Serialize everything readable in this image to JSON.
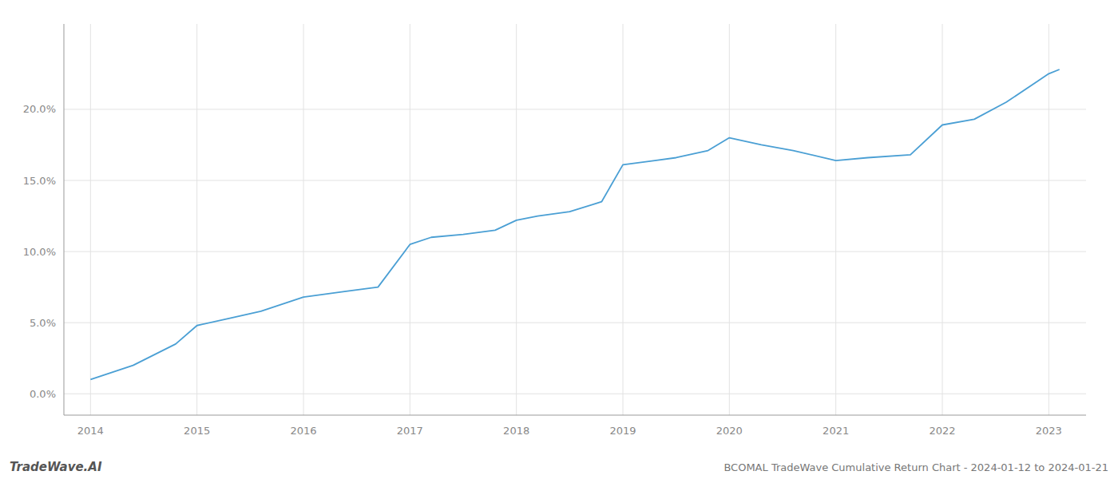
{
  "chart_data": {
    "type": "line",
    "title": "BCOMAL TradeWave Cumulative Return Chart - 2024-01-12 to 2024-01-21",
    "annotations": [
      "TradeWave.AI"
    ],
    "color": "#4a9fd4",
    "x": [
      2014.0,
      2014.4,
      2014.8,
      2015.0,
      2015.3,
      2015.6,
      2016.0,
      2016.4,
      2016.7,
      2017.0,
      2017.2,
      2017.5,
      2017.8,
      2018.0,
      2018.2,
      2018.5,
      2018.8,
      2019.0,
      2019.3,
      2019.5,
      2019.8,
      2020.0,
      2020.3,
      2020.6,
      2021.0,
      2021.3,
      2021.7,
      2022.0,
      2022.3,
      2022.6,
      2022.9,
      2023.0,
      2023.1
    ],
    "values": [
      1.0,
      2.0,
      3.5,
      4.8,
      5.3,
      5.8,
      6.8,
      7.2,
      7.5,
      10.5,
      11.0,
      11.2,
      11.5,
      12.2,
      12.5,
      12.8,
      13.5,
      16.1,
      16.4,
      16.6,
      17.1,
      18.0,
      17.5,
      17.1,
      16.4,
      16.6,
      16.8,
      18.9,
      19.3,
      20.5,
      22.0,
      22.5,
      22.8
    ],
    "xlim": [
      2013.75,
      2023.35
    ],
    "ylim": [
      -1.5,
      26.0
    ],
    "xticks": [
      2014,
      2015,
      2016,
      2017,
      2018,
      2019,
      2020,
      2021,
      2022,
      2023
    ],
    "yticks": [
      {
        "value": 0.0,
        "label": "0.0%"
      },
      {
        "value": 5.0,
        "label": "5.0%"
      },
      {
        "value": 10.0,
        "label": "10.0%"
      },
      {
        "value": 15.0,
        "label": "15.0%"
      },
      {
        "value": 20.0,
        "label": "20.0%"
      }
    ],
    "grid": true
  }
}
